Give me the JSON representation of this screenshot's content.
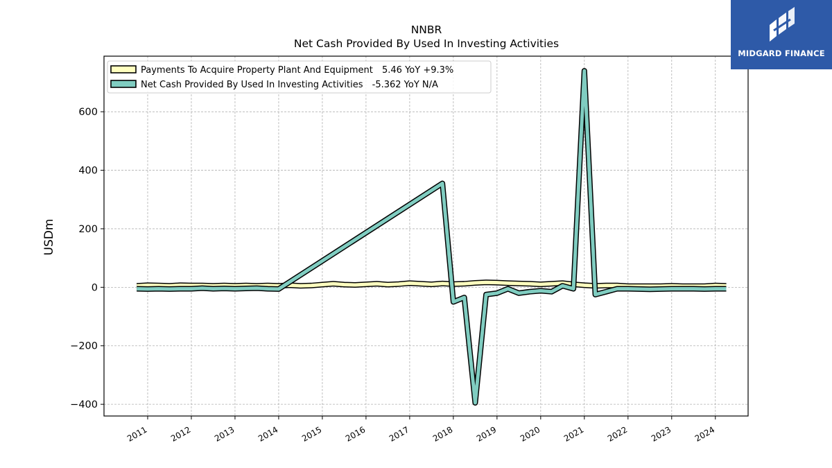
{
  "brand": {
    "name": "MIDGARD FINANCE",
    "color": "#2e5aa8",
    "icon": "midgard-logo-icon"
  },
  "chart_data": {
    "type": "line",
    "title": "NNBR",
    "subtitle": "Net Cash Provided By Used In Investing Activities",
    "ylabel": "USDm",
    "xlabel": "",
    "ylim": [
      -440,
      790
    ],
    "xlim": [
      "2010-01",
      "2024-10"
    ],
    "yticks": [
      -400,
      -200,
      0,
      200,
      400,
      600
    ],
    "ytick_labels": [
      "−400",
      "−200",
      "0",
      "200",
      "400",
      "600"
    ],
    "xtick_labels": [
      "2011",
      "2012",
      "2013",
      "2014",
      "2015",
      "2016",
      "2017",
      "2018",
      "2019",
      "2020",
      "2021",
      "2022",
      "2023",
      "2024"
    ],
    "grid": true,
    "legend_position": "top-left",
    "series": [
      {
        "name": "Payments To Acquire Property Plant And Equipment",
        "legend_suffix": "5.46 YoY +9.3%",
        "color": "#ffffbf",
        "edge": "#000000",
        "x": [
          "2010-10",
          "2011-01",
          "2011-04",
          "2011-07",
          "2011-10",
          "2012-01",
          "2012-04",
          "2012-07",
          "2012-10",
          "2013-01",
          "2013-04",
          "2013-07",
          "2013-10",
          "2014-01",
          "2014-04",
          "2014-07",
          "2014-10",
          "2015-01",
          "2015-04",
          "2015-07",
          "2015-10",
          "2016-01",
          "2016-04",
          "2016-07",
          "2016-10",
          "2017-01",
          "2017-04",
          "2017-07",
          "2017-10",
          "2018-01",
          "2018-04",
          "2018-07",
          "2018-10",
          "2019-01",
          "2019-04",
          "2019-07",
          "2019-10",
          "2020-01",
          "2020-04",
          "2020-07",
          "2020-10",
          "2021-01",
          "2021-04",
          "2021-07",
          "2021-10",
          "2022-01",
          "2022-04",
          "2022-07",
          "2022-10",
          "2023-01",
          "2023-04",
          "2023-07",
          "2023-10",
          "2024-01",
          "2024-04"
        ],
        "values": [
          5,
          7,
          6,
          5,
          7,
          6,
          6,
          5,
          6,
          5,
          6,
          5,
          6,
          5,
          7,
          5,
          6,
          9,
          12,
          9,
          8,
          10,
          12,
          9,
          11,
          14,
          12,
          10,
          13,
          11,
          12,
          15,
          17,
          16,
          14,
          13,
          12,
          10,
          12,
          14,
          10,
          7,
          5,
          6,
          6,
          4,
          4,
          4,
          4,
          5,
          4,
          4,
          4,
          6,
          5
        ]
      },
      {
        "name": "Net Cash Provided By Used In Investing Activities",
        "legend_suffix": "-5.362 YoY N/A",
        "color": "#80cdc1",
        "edge": "#000000",
        "x": [
          "2010-10",
          "2011-01",
          "2011-04",
          "2011-07",
          "2011-10",
          "2012-01",
          "2012-04",
          "2012-07",
          "2012-10",
          "2013-01",
          "2013-04",
          "2013-07",
          "2013-10",
          "2014-01",
          "2017-10",
          "2018-01",
          "2018-04",
          "2018-07",
          "2018-10",
          "2019-01",
          "2019-04",
          "2019-07",
          "2019-10",
          "2020-01",
          "2020-04",
          "2020-07",
          "2020-10",
          "2021-01",
          "2021-04",
          "2021-07",
          "2021-10",
          "2022-01",
          "2022-04",
          "2022-07",
          "2022-10",
          "2023-01",
          "2023-04",
          "2023-07",
          "2023-10",
          "2024-01",
          "2024-04"
        ],
        "values": [
          -5,
          -6,
          -5,
          -6,
          -5,
          -5,
          -3,
          -5,
          -4,
          -5,
          -4,
          -3,
          -5,
          -6,
          355,
          -50,
          -35,
          -395,
          -25,
          -20,
          -5,
          -20,
          -15,
          -12,
          -15,
          5,
          -5,
          740,
          -25,
          -15,
          -5,
          -5,
          -6,
          -7,
          -6,
          -5,
          -5,
          -5,
          -6,
          -5,
          -5
        ]
      }
    ]
  }
}
